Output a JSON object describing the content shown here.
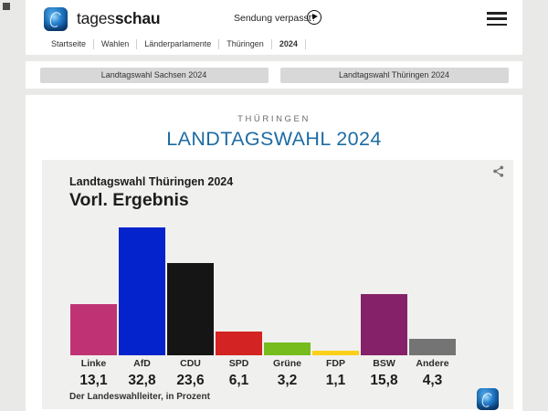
{
  "header": {
    "brand_word1": "tages",
    "brand_word2": "schau",
    "missed_broadcast_label": "Sendung verpasst?",
    "breadcrumb": [
      {
        "label": "Startseite",
        "current": false
      },
      {
        "label": "Wahlen",
        "current": false
      },
      {
        "label": "Länderparlamente",
        "current": false
      },
      {
        "label": "Thüringen",
        "current": false
      },
      {
        "label": "2024",
        "current": true
      }
    ]
  },
  "icons": {
    "brand_logo": "tagesschau-globe-logo",
    "play": "play-circle-icon",
    "menu": "hamburger-menu-icon",
    "share": "share-icon"
  },
  "quick_links": [
    {
      "label": "Landtagswahl Sachsen 2024"
    },
    {
      "label": "Landtagswahl Thüringen 2024"
    }
  ],
  "page_heading": {
    "kicker": "THÜRINGEN",
    "title": "LANDTAGSWAHL 2024",
    "title_color": "#1d6ba3"
  },
  "chart_data": {
    "type": "bar",
    "title": "Landtagswahl Thüringen 2024",
    "subtitle": "Vorl. Ergebnis",
    "source": "Der Landeswahlleiter, in Prozent",
    "categories": [
      "Linke",
      "AfD",
      "CDU",
      "SPD",
      "Grüne",
      "FDP",
      "BSW",
      "Andere"
    ],
    "values": [
      13.1,
      32.8,
      23.6,
      6.1,
      3.2,
      1.1,
      15.8,
      4.3
    ],
    "value_labels": [
      "13,1",
      "32,8",
      "23,6",
      "6,1",
      "3,2",
      "1,1",
      "15,8",
      "4,3"
    ],
    "colors": [
      "#bf3374",
      "#0423cd",
      "#151515",
      "#d32322",
      "#76bc1d",
      "#fbd01a",
      "#852169",
      "#747474"
    ],
    "ylim": [
      0,
      35
    ],
    "unit": "Prozent",
    "grid": false,
    "legend": "none",
    "background": "#f0f0ee"
  }
}
